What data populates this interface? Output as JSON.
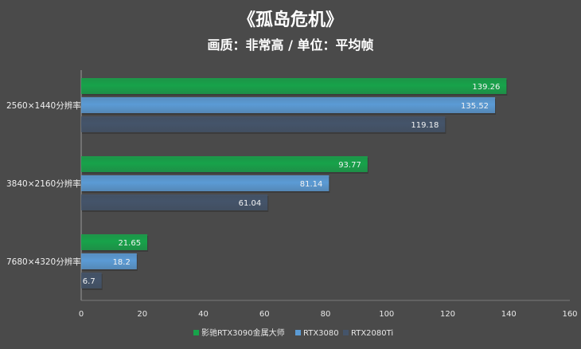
{
  "chart_data": {
    "type": "bar",
    "orientation": "horizontal",
    "title": "《孤岛危机》",
    "subtitle": "画质：非常高 / 单位：平均帧",
    "categories": [
      "2560×1440分辨率",
      "3840×2160分辨率",
      "7680×4320分辨率"
    ],
    "series": [
      {
        "name": "影驰RTX3090金属大师",
        "color": "#17a34a",
        "values": [
          139.26,
          93.77,
          21.65
        ]
      },
      {
        "name": "RTX3080",
        "color": "#5b9bd5",
        "values": [
          135.52,
          81.14,
          18.2
        ]
      },
      {
        "name": "RTX2080Ti",
        "color": "#44546a",
        "values": [
          119.18,
          61.04,
          6.7
        ]
      }
    ],
    "value_labels": [
      [
        "139.26",
        "93.77",
        "21.65"
      ],
      [
        "135.52",
        "81.14",
        "18.2"
      ],
      [
        "119.18",
        "61.04",
        "6.7"
      ]
    ],
    "xlim": [
      0,
      160
    ],
    "xticks": [
      0,
      20,
      40,
      60,
      80,
      100,
      120,
      140,
      160
    ],
    "grid": false,
    "legend_position": "bottom"
  }
}
